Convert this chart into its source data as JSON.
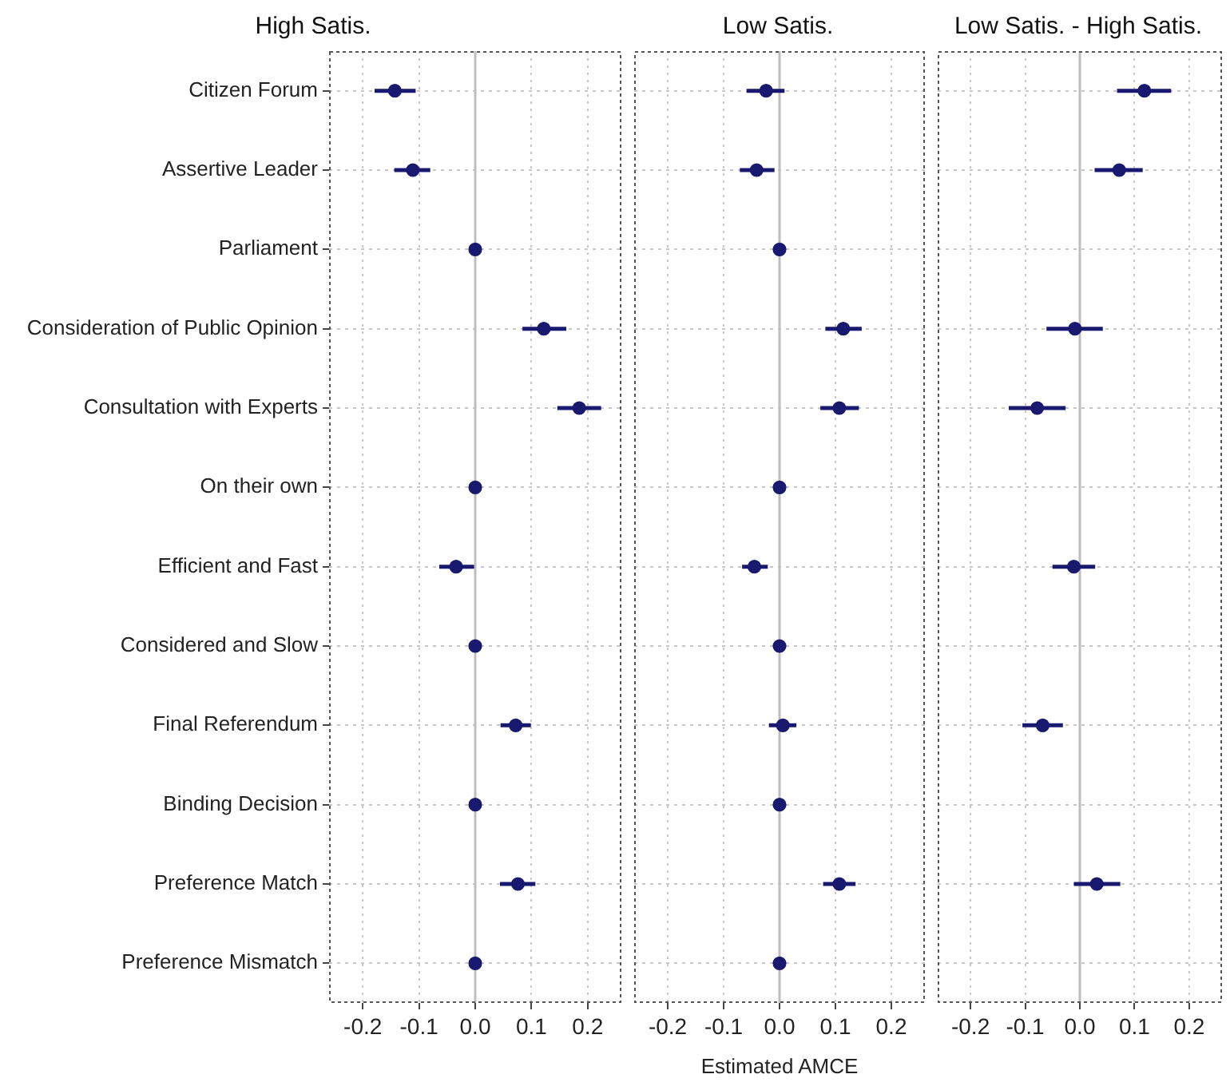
{
  "chart_data": [
    {
      "type": "scatter",
      "title": "High Satis.",
      "orientation": "horizontal",
      "categories": [
        "Citizen Forum",
        "Assertive Leader",
        "Parliament",
        "Consideration of Public Opinion",
        "Consultation with Experts",
        "On their own",
        "Efficient and Fast",
        "Considered and Slow",
        "Final Referendum",
        "Binding Decision",
        "Preference Match",
        "Preference Mismatch"
      ],
      "values": [
        -0.143,
        -0.111,
        0,
        0.122,
        0.185,
        0,
        -0.034,
        0,
        0.072,
        0,
        0.076,
        0
      ],
      "errors": [
        [
          -0.179,
          -0.106
        ],
        [
          -0.144,
          -0.08
        ],
        null,
        [
          0.084,
          0.162
        ],
        [
          0.146,
          0.224
        ],
        null,
        [
          -0.064,
          -0.002
        ],
        null,
        [
          0.045,
          0.099
        ],
        null,
        [
          0.044,
          0.107
        ],
        null
      ],
      "color": "#191970",
      "marker": "circle",
      "xlim": [
        -0.26,
        0.26
      ],
      "xticks": [
        {
          "value": -0.2,
          "label": "-0.2"
        },
        {
          "value": -0.1,
          "label": "-0.1"
        },
        {
          "value": 0,
          "label": "0.0"
        },
        {
          "value": 0.1,
          "label": "0.1"
        },
        {
          "value": 0.2,
          "label": "0.2"
        }
      ],
      "grid": true,
      "ref_lines": [
        {
          "axis": "x",
          "value": 0,
          "color": "#bebebe"
        }
      ]
    },
    {
      "type": "scatter",
      "title": "Low Satis.",
      "xlabel": "Estimated AMCE",
      "orientation": "horizontal",
      "categories": [
        null,
        null,
        null,
        null,
        null,
        null,
        null,
        null,
        null,
        null,
        null,
        null
      ],
      "values": [
        -0.024,
        -0.041,
        0,
        0.114,
        0.107,
        0,
        -0.045,
        0,
        0.006,
        0,
        0.107,
        0
      ],
      "errors": [
        [
          -0.059,
          0.009
        ],
        [
          -0.071,
          -0.009
        ],
        null,
        [
          0.082,
          0.147
        ],
        [
          0.073,
          0.142
        ],
        null,
        [
          -0.067,
          -0.021
        ],
        null,
        [
          -0.019,
          0.03
        ],
        null,
        [
          0.078,
          0.136
        ],
        null
      ],
      "color": "#191970",
      "marker": "circle",
      "xlim": [
        -0.26,
        0.26
      ],
      "xticks": [
        {
          "value": -0.2,
          "label": "-0.2"
        },
        {
          "value": -0.1,
          "label": "-0.1"
        },
        {
          "value": 0,
          "label": "0.0"
        },
        {
          "value": 0.1,
          "label": "0.1"
        },
        {
          "value": 0.2,
          "label": "0.2"
        }
      ],
      "grid": true,
      "tick_labels": "x",
      "ref_lines": [
        {
          "axis": "x",
          "value": 0,
          "color": "#bebebe"
        }
      ]
    },
    {
      "type": "scatter",
      "title": "Low Satis. - High Satis.",
      "orientation": "horizontal",
      "categories": [
        null,
        null,
        null,
        null,
        null,
        null,
        null,
        null,
        null,
        null,
        null,
        null
      ],
      "values": [
        0.118,
        0.072,
        null,
        -0.009,
        -0.078,
        null,
        -0.011,
        null,
        -0.068,
        null,
        0.031,
        null
      ],
      "errors": [
        [
          0.068,
          0.167
        ],
        [
          0.027,
          0.115
        ],
        null,
        [
          -0.061,
          0.042
        ],
        [
          -0.13,
          -0.026
        ],
        null,
        [
          -0.05,
          0.028
        ],
        null,
        [
          -0.105,
          -0.031
        ],
        null,
        [
          -0.011,
          0.074
        ],
        null
      ],
      "color": "#191970",
      "marker": "circle",
      "xlim": [
        -0.26,
        0.26
      ],
      "xticks": [
        {
          "value": -0.2,
          "label": "-0.2"
        },
        {
          "value": -0.1,
          "label": "-0.1"
        },
        {
          "value": 0,
          "label": "0.0"
        },
        {
          "value": 0.1,
          "label": "0.1"
        },
        {
          "value": 0.2,
          "label": "0.2"
        }
      ],
      "grid": true,
      "tick_labels": "x",
      "ref_lines": [
        {
          "axis": "x",
          "value": 0,
          "color": "#bebebe"
        }
      ]
    }
  ]
}
